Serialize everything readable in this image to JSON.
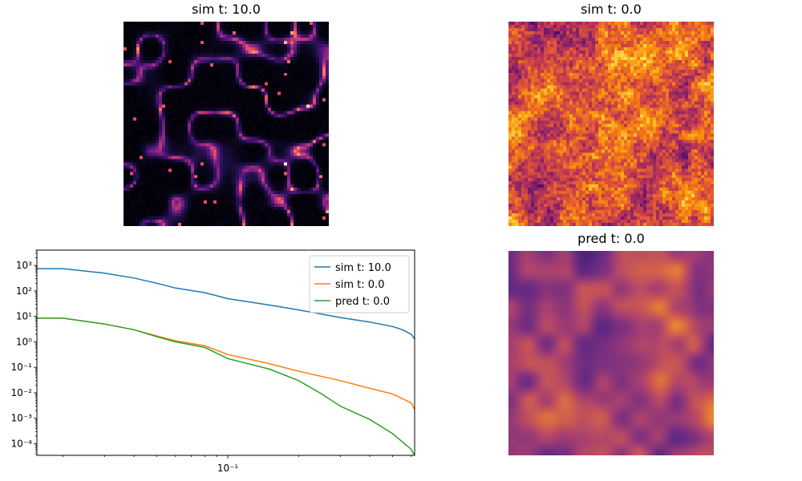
{
  "panels": {
    "top_left": {
      "title": "sim t: 10.0",
      "colormap": "magma",
      "kind": "filaments"
    },
    "top_right": {
      "title": "sim t: 0.0",
      "colormap": "inferno",
      "kind": "noisy"
    },
    "bottom_right": {
      "title": "pred t: 0.0",
      "colormap": "plasma-muted",
      "kind": "smooth"
    }
  },
  "chart_data": {
    "type": "line",
    "title": "",
    "xlabel": "",
    "ylabel": "",
    "xscale": "log",
    "yscale": "log",
    "xlim": [
      0.0155,
      0.62
    ],
    "ylim": [
      3.5e-05,
      4000
    ],
    "grid": false,
    "legend_position": "top-right",
    "x_tick_labels": [
      {
        "value": 0.1,
        "label": "10⁻¹"
      }
    ],
    "y_tick_labels": [
      {
        "value": 1000,
        "label": "10³"
      },
      {
        "value": 100,
        "label": "10²"
      },
      {
        "value": 10,
        "label": "10¹"
      },
      {
        "value": 1,
        "label": "10⁰"
      },
      {
        "value": 0.1,
        "label": "10⁻¹"
      },
      {
        "value": 0.01,
        "label": "10⁻²"
      },
      {
        "value": 0.001,
        "label": "10⁻³"
      },
      {
        "value": 0.0001,
        "label": "10⁻⁴"
      }
    ],
    "series": [
      {
        "name": "sim t: 10.0",
        "color": "#1f77b4",
        "x": [
          0.0155,
          0.02,
          0.03,
          0.04,
          0.05,
          0.06,
          0.08,
          0.1,
          0.15,
          0.2,
          0.3,
          0.4,
          0.5,
          0.55,
          0.6,
          0.62
        ],
        "y": [
          750,
          750,
          500,
          320,
          200,
          130,
          85,
          50,
          28,
          18,
          9,
          6,
          4,
          3,
          2,
          1.3
        ]
      },
      {
        "name": "sim t: 0.0",
        "color": "#ff7f0e",
        "x": [
          0.0155,
          0.02,
          0.03,
          0.04,
          0.05,
          0.06,
          0.08,
          0.1,
          0.15,
          0.2,
          0.3,
          0.4,
          0.5,
          0.6,
          0.62
        ],
        "y": [
          8.5,
          8.5,
          5,
          3,
          1.7,
          1.1,
          0.7,
          0.32,
          0.14,
          0.07,
          0.03,
          0.015,
          0.009,
          0.004,
          0.0022
        ]
      },
      {
        "name": "pred t: 0.0",
        "color": "#2ca02c",
        "x": [
          0.0155,
          0.02,
          0.03,
          0.04,
          0.05,
          0.06,
          0.08,
          0.1,
          0.15,
          0.2,
          0.25,
          0.3,
          0.4,
          0.5,
          0.6,
          0.62
        ],
        "y": [
          8.5,
          8.5,
          5,
          3,
          1.6,
          1,
          0.6,
          0.22,
          0.085,
          0.03,
          0.009,
          0.003,
          0.0009,
          0.00025,
          6e-05,
          3.5e-05
        ]
      }
    ]
  }
}
